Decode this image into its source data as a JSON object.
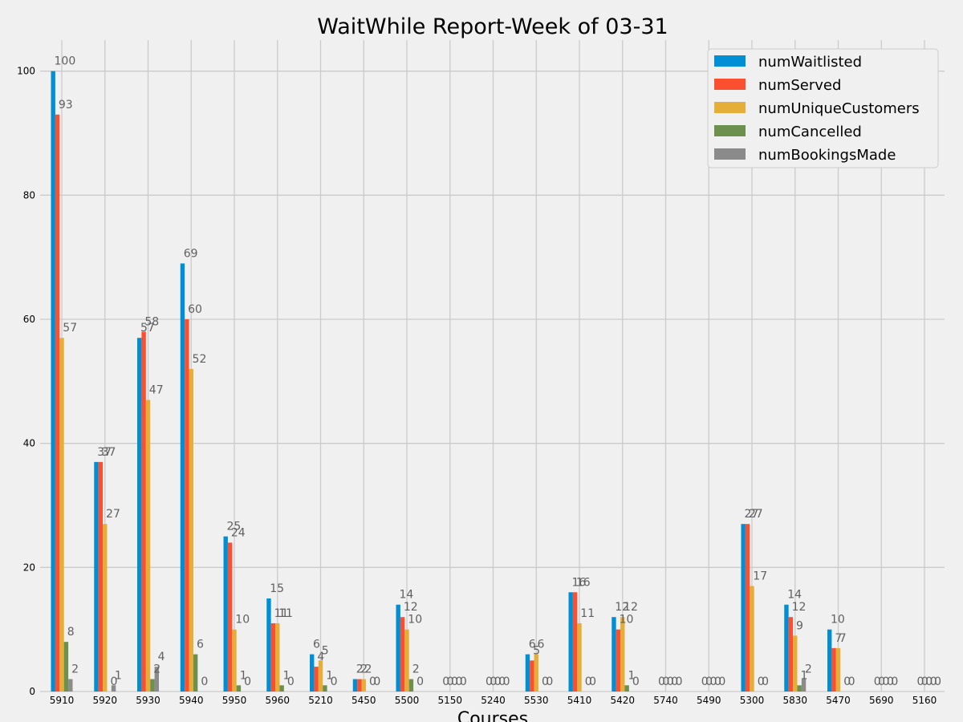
{
  "chart_data": {
    "type": "bar",
    "title": "WaitWhile Report-Week of 03-31",
    "xlabel": "Courses",
    "ylabel": "",
    "ylim": [
      0,
      105
    ],
    "yticks": [
      0,
      20,
      40,
      60,
      80,
      100
    ],
    "grid": true,
    "legend_position": "top-right",
    "categories": [
      "5910",
      "5920",
      "5930",
      "5940",
      "5950",
      "5960",
      "5210",
      "5450",
      "5500",
      "5150",
      "5240",
      "5530",
      "5410",
      "5420",
      "5740",
      "5490",
      "5300",
      "5830",
      "5470",
      "5690",
      "5160"
    ],
    "series": [
      {
        "name": "numWaitlisted",
        "color": "#008fd5",
        "values": [
          100,
          37,
          57,
          69,
          25,
          15,
          6,
          2,
          14,
          0,
          0,
          6,
          16,
          12,
          0,
          0,
          27,
          14,
          10,
          0,
          0
        ]
      },
      {
        "name": "numServed",
        "color": "#fc4f30",
        "values": [
          93,
          37,
          58,
          60,
          24,
          11,
          4,
          2,
          12,
          0,
          0,
          5,
          16,
          10,
          0,
          0,
          27,
          12,
          7,
          0,
          0
        ]
      },
      {
        "name": "numUniqueCustomers",
        "color": "#e5ae38",
        "values": [
          57,
          27,
          47,
          52,
          10,
          11,
          5,
          2,
          10,
          0,
          0,
          6,
          11,
          12,
          0,
          0,
          17,
          9,
          7,
          0,
          0
        ]
      },
      {
        "name": "numCancelled",
        "color": "#6d904f",
        "values": [
          8,
          0,
          2,
          6,
          1,
          1,
          1,
          0,
          2,
          0,
          0,
          0,
          0,
          1,
          0,
          0,
          0,
          1,
          0,
          0,
          0
        ]
      },
      {
        "name": "numBookingsMade",
        "color": "#8b8b8b",
        "values": [
          2,
          1,
          4,
          0,
          0,
          0,
          0,
          0,
          0,
          0,
          0,
          0,
          0,
          0,
          0,
          0,
          0,
          2,
          0,
          0,
          0
        ]
      }
    ]
  }
}
